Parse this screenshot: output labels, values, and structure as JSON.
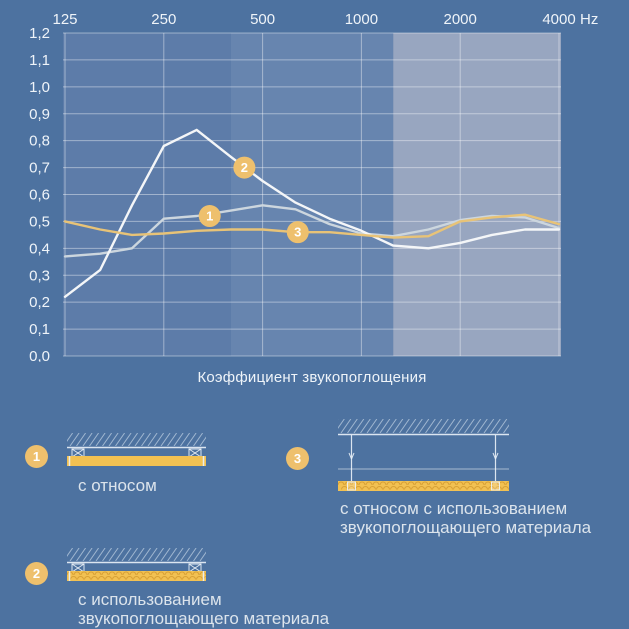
{
  "page": {
    "bg_color": "#4d72a0"
  },
  "chart": {
    "title": "Коэффициент звукопоглощения",
    "x_unit_label": "Hz",
    "x_tick_labels": [
      "125",
      "250",
      "500",
      "1000",
      "2000",
      "4000"
    ],
    "y_tick_labels": [
      "1,2",
      "1,1",
      "1,0",
      "0,9",
      "0,8",
      "0,7",
      "0,6",
      "0,5",
      "0,4",
      "0,3",
      "0,2",
      "0,1",
      "0,0"
    ],
    "text_color": "#eff4f9",
    "grid_color": "rgba(255,255,255,0.42)"
  },
  "chart_data": {
    "type": "line",
    "x_scale": "log",
    "x_unit": "Hz",
    "x_ticks": [
      125,
      250,
      500,
      1000,
      2000,
      4000
    ],
    "x": [
      125,
      160,
      200,
      250,
      315,
      400,
      500,
      630,
      800,
      1000,
      1250,
      1600,
      2000,
      2500,
      3150,
      4000
    ],
    "ylim": [
      0,
      1.2
    ],
    "y_tick_step": 0.1,
    "title": "Коэффициент звукопоглощения",
    "grid": true,
    "bands": [
      {
        "from": 125,
        "to": 400,
        "color": "#5d7ca9"
      },
      {
        "from": 400,
        "to": 1250,
        "color": "#6785af"
      },
      {
        "from": 1250,
        "to": 4000,
        "color": "#98a6c0"
      }
    ],
    "series": [
      {
        "id": "1",
        "name": "с относом",
        "color": "#ccd6de",
        "values": [
          0.37,
          0.38,
          0.4,
          0.51,
          0.52,
          0.54,
          0.56,
          0.545,
          0.49,
          0.455,
          0.445,
          0.47,
          0.505,
          0.52,
          0.515,
          0.475
        ]
      },
      {
        "id": "2",
        "name": "с использованием звукопоглощающего материала",
        "color": "#f4f6f8",
        "values": [
          0.22,
          0.32,
          0.56,
          0.78,
          0.84,
          0.74,
          0.65,
          0.57,
          0.51,
          0.465,
          0.41,
          0.4,
          0.42,
          0.45,
          0.47,
          0.47
        ]
      },
      {
        "id": "3",
        "name": "с относом с использованием звукопоглощающего материала",
        "color": "#e8c377",
        "values": [
          0.5,
          0.47,
          0.45,
          0.455,
          0.465,
          0.47,
          0.47,
          0.46,
          0.46,
          0.45,
          0.44,
          0.445,
          0.5,
          0.515,
          0.525,
          0.49
        ]
      }
    ],
    "markers": [
      {
        "label": "1",
        "freq": 345,
        "value": 0.52
      },
      {
        "label": "2",
        "freq": 440,
        "value": 0.7
      },
      {
        "label": "3",
        "freq": 640,
        "value": 0.46
      }
    ],
    "marker_color": "#eec06d"
  },
  "legend": {
    "badge_color": "#eec06d",
    "text_color": "#dce4ec",
    "panel_color": "#f2c152",
    "items": [
      {
        "num": "1",
        "diagram": "direct-mount",
        "label_lines": [
          "с относом"
        ]
      },
      {
        "num": "2",
        "diagram": "direct-mount-absorber",
        "label_lines": [
          "с использованием",
          "звукопоглощающего материала"
        ]
      },
      {
        "num": "3",
        "diagram": "suspended-absorber",
        "label_lines": [
          "с относом с использованием",
          "звукопоглощающего материала"
        ]
      }
    ]
  }
}
